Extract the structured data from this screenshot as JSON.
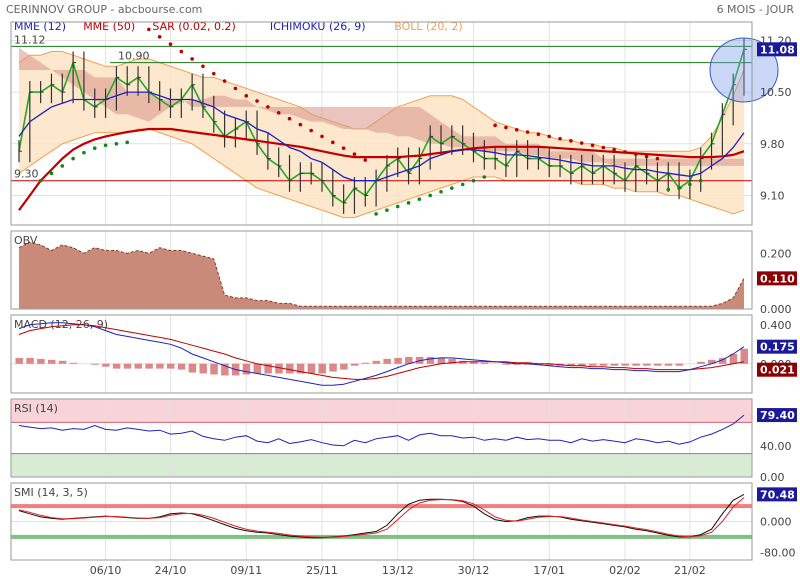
{
  "header": {
    "title": "CERINNOV GROUP - abcbourse.com",
    "period": "6 MOIS - JOUR"
  },
  "colors": {
    "mme12": "#2020c0",
    "mme50": "#c00000",
    "sar": "#c00000",
    "sar_up": "#118811",
    "ichimoku_span": "#d9948a",
    "ichimoku_chikou": "#22aa22",
    "boll_band": "#f0a050",
    "boll_fill": "#fde3c4",
    "obv_fill": "#c98a7a",
    "obv_line": "#8a3a2a",
    "macd": "#2020c0",
    "signal": "#c00000",
    "rsi": "#2020c0",
    "smi": "#101010",
    "smi_signal": "#dd2222",
    "badge": "#8b0000",
    "badge_blue": "#1a1a9a"
  },
  "chart_data": [
    {
      "type": "line",
      "pane": "price",
      "legend": [
        {
          "label": "MME (12)",
          "color": "#2020c0"
        },
        {
          "label": "MME (50)",
          "color": "#c00000"
        },
        {
          "label": "SAR (0.02, 0.2)",
          "color": "#c00000"
        },
        {
          "label": "ICHIMOKU (26, 9)",
          "color": "#2020c0"
        },
        {
          "label": "BOLL (20, 2)",
          "color": "#f0a050"
        }
      ],
      "x_ticks": [
        "06/10",
        "24/10",
        "09/11",
        "25/11",
        "13/12",
        "30/12",
        "17/01",
        "02/02",
        "21/02"
      ],
      "y_ticks": [
        11.2,
        10.5,
        9.8,
        9.1
      ],
      "ylim": [
        8.7,
        11.45
      ],
      "current_value": "11.08",
      "resistance": 10.9,
      "resistance_label": "10.90",
      "level_high": 11.12,
      "level_high_label": "11.12",
      "support": 9.3,
      "support_label": "9.30",
      "close": [
        9.7,
        10.5,
        10.5,
        10.6,
        10.5,
        10.9,
        10.4,
        10.3,
        10.4,
        10.7,
        10.6,
        10.7,
        10.5,
        10.4,
        10.3,
        10.4,
        10.6,
        10.3,
        10.1,
        9.9,
        10.0,
        10.1,
        9.8,
        9.6,
        9.5,
        9.3,
        9.4,
        9.4,
        9.3,
        9.1,
        9.0,
        9.2,
        9.1,
        9.3,
        9.5,
        9.6,
        9.4,
        9.6,
        9.9,
        9.8,
        9.9,
        9.8,
        9.7,
        9.6,
        9.6,
        9.5,
        9.7,
        9.6,
        9.6,
        9.5,
        9.5,
        9.4,
        9.5,
        9.4,
        9.5,
        9.4,
        9.3,
        9.5,
        9.4,
        9.3,
        9.4,
        9.2,
        9.3,
        9.6,
        9.8,
        10.2,
        10.6,
        11.08
      ],
      "mme12": [
        9.9,
        10.1,
        10.2,
        10.3,
        10.35,
        10.4,
        10.4,
        10.4,
        10.4,
        10.45,
        10.5,
        10.5,
        10.5,
        10.45,
        10.4,
        10.4,
        10.4,
        10.35,
        10.3,
        10.2,
        10.15,
        10.1,
        10.0,
        9.95,
        9.85,
        9.75,
        9.7,
        9.6,
        9.55,
        9.45,
        9.35,
        9.3,
        9.3,
        9.3,
        9.35,
        9.4,
        9.45,
        9.5,
        9.6,
        9.65,
        9.7,
        9.72,
        9.72,
        9.7,
        9.68,
        9.65,
        9.65,
        9.64,
        9.62,
        9.6,
        9.58,
        9.55,
        9.53,
        9.5,
        9.5,
        9.5,
        9.47,
        9.45,
        9.45,
        9.42,
        9.4,
        9.38,
        9.36,
        9.4,
        9.5,
        9.6,
        9.75,
        9.95
      ],
      "mme50": [
        8.9,
        9.1,
        9.3,
        9.45,
        9.6,
        9.72,
        9.8,
        9.86,
        9.9,
        9.93,
        9.96,
        9.98,
        10.0,
        10.0,
        10.0,
        9.98,
        9.96,
        9.94,
        9.92,
        9.9,
        9.88,
        9.86,
        9.84,
        9.82,
        9.8,
        9.78,
        9.76,
        9.73,
        9.7,
        9.67,
        9.64,
        9.62,
        9.62,
        9.62,
        9.62,
        9.62,
        9.63,
        9.64,
        9.66,
        9.68,
        9.7,
        9.72,
        9.74,
        9.75,
        9.76,
        9.76,
        9.76,
        9.76,
        9.76,
        9.75,
        9.74,
        9.73,
        9.72,
        9.71,
        9.7,
        9.69,
        9.68,
        9.67,
        9.66,
        9.65,
        9.64,
        9.63,
        9.62,
        9.62,
        9.62,
        9.63,
        9.65,
        9.7
      ],
      "boll_upper": [
        10.9,
        11.0,
        11.0,
        11.05,
        11.05,
        11.0,
        10.95,
        10.9,
        10.85,
        10.85,
        10.9,
        10.95,
        10.95,
        10.9,
        10.85,
        10.8,
        10.75,
        10.7,
        10.7,
        10.65,
        10.6,
        10.55,
        10.5,
        10.45,
        10.4,
        10.35,
        10.3,
        10.2,
        10.15,
        10.1,
        10.05,
        10.0,
        10.0,
        10.1,
        10.2,
        10.3,
        10.35,
        10.4,
        10.45,
        10.45,
        10.45,
        10.4,
        10.3,
        10.2,
        10.1,
        10.05,
        10.0,
        9.95,
        9.95,
        9.9,
        9.85,
        9.85,
        9.8,
        9.8,
        9.75,
        9.75,
        9.7,
        9.7,
        9.7,
        9.7,
        9.7,
        9.7,
        9.7,
        9.75,
        9.9,
        10.15,
        10.45,
        10.8
      ],
      "boll_lower": [
        9.4,
        9.5,
        9.6,
        9.7,
        9.8,
        9.85,
        9.9,
        9.95,
        9.95,
        9.95,
        9.95,
        10.0,
        10.0,
        9.95,
        9.9,
        9.85,
        9.8,
        9.7,
        9.6,
        9.5,
        9.4,
        9.3,
        9.2,
        9.15,
        9.1,
        9.05,
        9.0,
        8.95,
        8.9,
        8.85,
        8.8,
        8.8,
        8.85,
        8.9,
        8.95,
        9.0,
        9.05,
        9.1,
        9.15,
        9.2,
        9.25,
        9.3,
        9.35,
        9.35,
        9.35,
        9.3,
        9.3,
        9.3,
        9.3,
        9.3,
        9.3,
        9.3,
        9.25,
        9.25,
        9.25,
        9.2,
        9.2,
        9.15,
        9.15,
        9.15,
        9.1,
        9.1,
        9.05,
        9.0,
        8.95,
        8.9,
        8.85,
        8.9
      ],
      "sar_down": [
        [
          12,
          11.35
        ],
        [
          13,
          11.25
        ],
        [
          14,
          11.15
        ],
        [
          15,
          11.05
        ],
        [
          16,
          10.95
        ],
        [
          17,
          10.85
        ],
        [
          18,
          10.75
        ],
        [
          19,
          10.65
        ],
        [
          20,
          10.55
        ],
        [
          21,
          10.45
        ],
        [
          22,
          10.38
        ],
        [
          23,
          10.3
        ],
        [
          24,
          10.22
        ],
        [
          25,
          10.14
        ],
        [
          26,
          10.06
        ],
        [
          27,
          9.98
        ],
        [
          28,
          9.9
        ],
        [
          29,
          9.82
        ],
        [
          30,
          9.74
        ],
        [
          31,
          9.66
        ],
        [
          32,
          9.58
        ],
        [
          44,
          10.05
        ],
        [
          45,
          10.02
        ],
        [
          46,
          9.99
        ],
        [
          47,
          9.96
        ],
        [
          48,
          9.93
        ],
        [
          49,
          9.9
        ],
        [
          50,
          9.87
        ],
        [
          51,
          9.84
        ],
        [
          52,
          9.81
        ],
        [
          53,
          9.78
        ],
        [
          54,
          9.75
        ],
        [
          55,
          9.72
        ],
        [
          56,
          9.69
        ],
        [
          57,
          9.66
        ],
        [
          58,
          9.63
        ],
        [
          59,
          9.6
        ]
      ],
      "sar_up": [
        [
          2,
          9.3
        ],
        [
          3,
          9.4
        ],
        [
          4,
          9.5
        ],
        [
          5,
          9.6
        ],
        [
          6,
          9.68
        ],
        [
          7,
          9.74
        ],
        [
          8,
          9.78
        ],
        [
          9,
          9.8
        ],
        [
          10,
          9.82
        ],
        [
          33,
          8.85
        ],
        [
          34,
          8.9
        ],
        [
          35,
          8.95
        ],
        [
          36,
          9.0
        ],
        [
          37,
          9.05
        ],
        [
          38,
          9.1
        ],
        [
          39,
          9.15
        ],
        [
          40,
          9.2
        ],
        [
          41,
          9.25
        ],
        [
          42,
          9.3
        ],
        [
          43,
          9.35
        ],
        [
          60,
          9.18
        ],
        [
          61,
          9.2
        ],
        [
          62,
          9.25
        ],
        [
          63,
          9.3
        ]
      ],
      "ichimoku_span_a": [
        11.1,
        11.0,
        10.9,
        10.8,
        10.7,
        10.6,
        10.5,
        10.4,
        10.3,
        10.2,
        10.2,
        10.15,
        10.1,
        10.2,
        10.3,
        10.35,
        10.4,
        10.4,
        10.45,
        10.45,
        10.4,
        10.4,
        10.3,
        10.25,
        10.2,
        10.2,
        10.15,
        10.1,
        10.1,
        10.05,
        10.0,
        10.0,
        10.0,
        9.95,
        9.95,
        9.9,
        9.9,
        9.85,
        9.8,
        9.8,
        9.75,
        9.75,
        9.75,
        9.7,
        9.7,
        9.7,
        9.7,
        9.65,
        9.65,
        9.6,
        9.6,
        9.6,
        9.55,
        9.55,
        9.55,
        9.5,
        9.5,
        9.5,
        9.5,
        9.5,
        9.5,
        9.5,
        9.5,
        9.5,
        9.5,
        9.5,
        9.5,
        9.5
      ],
      "ichimoku_span_b": [
        10.8,
        10.8,
        10.8,
        10.8,
        10.8,
        10.8,
        10.8,
        10.7,
        10.7,
        10.7,
        10.5,
        10.5,
        10.5,
        10.4,
        10.4,
        10.4,
        10.3,
        10.3,
        10.3,
        10.3,
        10.3,
        10.3,
        10.3,
        10.3,
        10.3,
        10.3,
        10.3,
        10.3,
        10.3,
        10.3,
        10.3,
        10.3,
        10.3,
        10.3,
        10.3,
        10.3,
        10.3,
        10.3,
        10.2,
        10.1,
        10.0,
        9.9,
        9.9,
        9.9,
        9.9,
        9.8,
        9.8,
        9.8,
        9.8,
        9.7,
        9.7,
        9.7,
        9.7,
        9.7,
        9.6,
        9.6,
        9.6,
        9.6,
        9.6,
        9.6,
        9.6,
        9.6,
        9.6,
        9.6,
        9.6,
        9.6,
        9.6,
        9.6
      ],
      "chikou": [
        9.7,
        10.5,
        10.5,
        10.6,
        10.5,
        10.9,
        10.4,
        10.3,
        10.4,
        10.7,
        10.6,
        10.7,
        10.5,
        10.4,
        10.3,
        10.4,
        10.6,
        10.3,
        10.1,
        9.9,
        10.0,
        10.1,
        9.8,
        9.6,
        9.5,
        9.3,
        9.4,
        9.4,
        9.3,
        9.1,
        9.0,
        9.2,
        9.1,
        9.3,
        9.5,
        9.6,
        9.4,
        9.6,
        9.9,
        9.8,
        9.9,
        9.8,
        9.7,
        9.6,
        9.6,
        9.5,
        9.7,
        9.6,
        9.6,
        9.5,
        9.5,
        9.4,
        9.5,
        9.4,
        9.5,
        9.4,
        9.3,
        9.5,
        9.4,
        9.3,
        9.4,
        9.2,
        9.3,
        9.6,
        9.8,
        10.2,
        10.6,
        11.08
      ]
    },
    {
      "type": "area",
      "pane": "obv",
      "legend": [
        {
          "label": "OBV",
          "color": "#8a3a2a"
        }
      ],
      "y_ticks": [
        "0.200",
        "0.000"
      ],
      "ylim": [
        0,
        0.28
      ],
      "current_value": "0.110",
      "values": [
        0.22,
        0.24,
        0.23,
        0.21,
        0.23,
        0.22,
        0.2,
        0.22,
        0.21,
        0.21,
        0.2,
        0.21,
        0.2,
        0.22,
        0.21,
        0.21,
        0.2,
        0.19,
        0.18,
        0.05,
        0.04,
        0.04,
        0.03,
        0.03,
        0.02,
        0.02,
        0.01,
        0.01,
        0.01,
        0.01,
        0.01,
        0.01,
        0.01,
        0.01,
        0.01,
        0.01,
        0.01,
        0.01,
        0.01,
        0.01,
        0.01,
        0.01,
        0.01,
        0.01,
        0.01,
        0.01,
        0.01,
        0.01,
        0.01,
        0.01,
        0.01,
        0.01,
        0.01,
        0.01,
        0.01,
        0.01,
        0.01,
        0.01,
        0.01,
        0.01,
        0.01,
        0.01,
        0.01,
        0.01,
        0.01,
        0.02,
        0.04,
        0.11
      ]
    },
    {
      "type": "line",
      "pane": "macd",
      "legend": [
        {
          "label": "MACD (12, 26, 9)",
          "color": "#2020c0"
        }
      ],
      "y_ticks": [
        "0.400",
        "0.000"
      ],
      "ylim": [
        -0.3,
        0.5
      ],
      "current_values": [
        "0.175",
        "0.021"
      ],
      "macd": [
        0.36,
        0.4,
        0.41,
        0.42,
        0.42,
        0.41,
        0.4,
        0.38,
        0.34,
        0.3,
        0.28,
        0.26,
        0.24,
        0.22,
        0.2,
        0.16,
        0.1,
        0.06,
        0.02,
        -0.02,
        -0.06,
        -0.08,
        -0.1,
        -0.12,
        -0.14,
        -0.16,
        -0.18,
        -0.2,
        -0.22,
        -0.22,
        -0.21,
        -0.18,
        -0.15,
        -0.12,
        -0.08,
        -0.04,
        0.0,
        0.03,
        0.05,
        0.06,
        0.06,
        0.05,
        0.04,
        0.03,
        0.02,
        0.01,
        0.0,
        0.0,
        -0.01,
        -0.02,
        -0.03,
        -0.04,
        -0.04,
        -0.05,
        -0.05,
        -0.06,
        -0.06,
        -0.07,
        -0.07,
        -0.08,
        -0.08,
        -0.08,
        -0.06,
        -0.03,
        0.0,
        0.04,
        0.1,
        0.175
      ],
      "signal": [
        0.3,
        0.34,
        0.36,
        0.38,
        0.39,
        0.4,
        0.4,
        0.39,
        0.37,
        0.35,
        0.33,
        0.31,
        0.29,
        0.27,
        0.25,
        0.22,
        0.19,
        0.16,
        0.13,
        0.1,
        0.06,
        0.03,
        0.0,
        -0.02,
        -0.04,
        -0.06,
        -0.08,
        -0.1,
        -0.12,
        -0.14,
        -0.15,
        -0.16,
        -0.16,
        -0.15,
        -0.13,
        -0.1,
        -0.07,
        -0.04,
        -0.02,
        0.0,
        0.01,
        0.02,
        0.02,
        0.02,
        0.02,
        0.02,
        0.01,
        0.01,
        0.0,
        0.0,
        -0.01,
        -0.02,
        -0.02,
        -0.03,
        -0.03,
        -0.04,
        -0.04,
        -0.05,
        -0.05,
        -0.06,
        -0.06,
        -0.06,
        -0.06,
        -0.05,
        -0.04,
        -0.02,
        0.0,
        0.021
      ]
    },
    {
      "type": "line",
      "pane": "rsi",
      "legend": [
        {
          "label": "RSI (14)",
          "color": "#2020c0"
        }
      ],
      "y_ticks": [
        "40.00",
        "0.00"
      ],
      "ylim": [
        0,
        100
      ],
      "current_value": "79.40",
      "upper_band": 70,
      "lower_band": 30,
      "values": [
        66,
        64,
        62,
        63,
        60,
        62,
        61,
        66,
        61,
        60,
        63,
        61,
        59,
        60,
        55,
        56,
        59,
        52,
        49,
        47,
        51,
        53,
        46,
        44,
        49,
        43,
        45,
        48,
        44,
        41,
        40,
        47,
        44,
        49,
        51,
        53,
        47,
        54,
        56,
        53,
        53,
        50,
        51,
        47,
        49,
        47,
        51,
        48,
        49,
        47,
        47,
        44,
        49,
        46,
        48,
        46,
        44,
        49,
        47,
        44,
        46,
        42,
        45,
        51,
        55,
        61,
        68,
        79.4
      ]
    },
    {
      "type": "line",
      "pane": "smi",
      "legend": [
        {
          "label": "SMI (14, 3, 5)",
          "color": "#101010"
        }
      ],
      "y_ticks": [
        "0.000",
        "-80.00"
      ],
      "ylim": [
        -100,
        100
      ],
      "current_value": "70.48",
      "upper_band": 40,
      "lower_band": -40,
      "smi": [
        28,
        20,
        12,
        8,
        6,
        8,
        10,
        12,
        14,
        12,
        10,
        8,
        8,
        12,
        20,
        22,
        20,
        12,
        2,
        -8,
        -18,
        -24,
        -28,
        -30,
        -34,
        -38,
        -40,
        -42,
        -42,
        -40,
        -38,
        -34,
        -30,
        -26,
        -10,
        20,
        45,
        55,
        58,
        58,
        56,
        52,
        40,
        20,
        5,
        0,
        2,
        10,
        14,
        14,
        12,
        6,
        2,
        -2,
        -6,
        -10,
        -14,
        -20,
        -24,
        -30,
        -36,
        -40,
        -40,
        -34,
        -20,
        20,
        55,
        70.48
      ],
      "signal": [
        30,
        24,
        16,
        10,
        7,
        7,
        9,
        11,
        13,
        13,
        11,
        9,
        8,
        10,
        16,
        20,
        21,
        16,
        8,
        -2,
        -12,
        -20,
        -25,
        -28,
        -31,
        -35,
        -38,
        -40,
        -41,
        -41,
        -39,
        -36,
        -33,
        -30,
        -20,
        5,
        30,
        48,
        55,
        57,
        57,
        54,
        46,
        30,
        12,
        3,
        1,
        6,
        11,
        13,
        13,
        9,
        4,
        0,
        -4,
        -8,
        -12,
        -17,
        -21,
        -27,
        -33,
        -38,
        -40,
        -37,
        -28,
        0,
        38,
        62
      ]
    }
  ]
}
